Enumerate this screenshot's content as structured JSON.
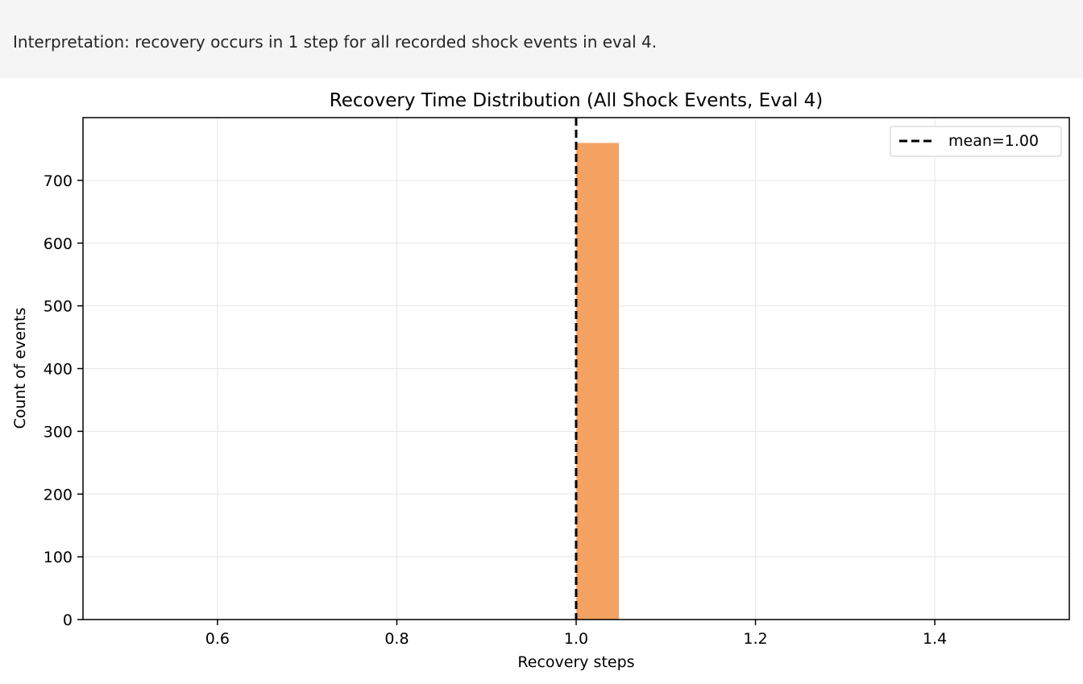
{
  "interpretation": {
    "text": "Interpretation: recovery occurs in 1 step for all recorded shock events in eval 4."
  },
  "chart_data": {
    "type": "bar",
    "title": "Recovery Time Distribution (All Shock Events, Eval 4)",
    "xlabel": "Recovery steps",
    "ylabel": "Count of events",
    "xlim": [
      0.45,
      1.55
    ],
    "ylim": [
      0,
      800
    ],
    "xticks": [
      0.6,
      0.8,
      1.0,
      1.2,
      1.4
    ],
    "xtick_labels": [
      "0.6",
      "0.8",
      "1.0",
      "1.2",
      "1.4"
    ],
    "yticks": [
      0,
      100,
      200,
      300,
      400,
      500,
      600,
      700
    ],
    "ytick_labels": [
      "0",
      "100",
      "200",
      "300",
      "400",
      "500",
      "600",
      "700"
    ],
    "bars": [
      {
        "x0": 1.0,
        "x1": 1.048,
        "value": 760
      }
    ],
    "bar_color": "#f4a261",
    "mean_line": {
      "x": 1.0,
      "label": "mean=1.00",
      "color": "#000000",
      "style": "dashed"
    },
    "grid": true,
    "legend": {
      "placement": "top-right",
      "entries": [
        "mean=1.00"
      ]
    }
  }
}
